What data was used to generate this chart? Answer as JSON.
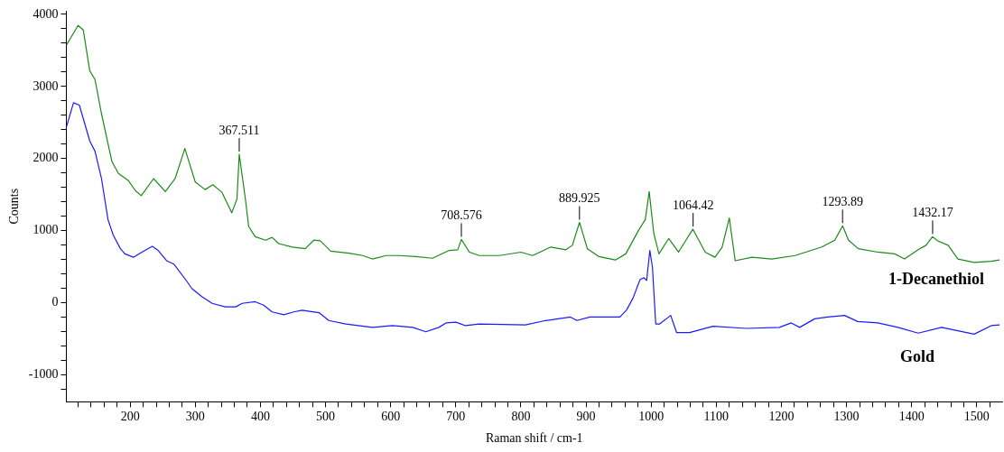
{
  "chart_data": {
    "type": "line",
    "xlabel": "Raman shift / cm-1",
    "ylabel": "Counts",
    "xlim": [
      102,
      1539
    ],
    "ylim": [
      -1375,
      4050
    ],
    "xticks": [
      {
        "value": 120,
        "label": null
      },
      {
        "value": 140,
        "label": null
      },
      {
        "value": 160,
        "label": null
      },
      {
        "value": 180,
        "label": null
      },
      200,
      {
        "value": 220,
        "label": null
      },
      {
        "value": 240,
        "label": null
      },
      {
        "value": 260,
        "label": null
      },
      {
        "value": 280,
        "label": null
      },
      300,
      {
        "value": 320,
        "label": null
      },
      {
        "value": 340,
        "label": null
      },
      {
        "value": 360,
        "label": null
      },
      {
        "value": 380,
        "label": null
      },
      400,
      {
        "value": 420,
        "label": null
      },
      {
        "value": 440,
        "label": null
      },
      {
        "value": 460,
        "label": null
      },
      {
        "value": 480,
        "label": null
      },
      500,
      {
        "value": 520,
        "label": null
      },
      {
        "value": 540,
        "label": null
      },
      {
        "value": 560,
        "label": null
      },
      {
        "value": 580,
        "label": null
      },
      600,
      {
        "value": 620,
        "label": null
      },
      {
        "value": 640,
        "label": null
      },
      {
        "value": 660,
        "label": null
      },
      {
        "value": 680,
        "label": null
      },
      700,
      {
        "value": 720,
        "label": null
      },
      {
        "value": 740,
        "label": null
      },
      {
        "value": 760,
        "label": null
      },
      {
        "value": 780,
        "label": null
      },
      800,
      {
        "value": 820,
        "label": null
      },
      {
        "value": 840,
        "label": null
      },
      {
        "value": 860,
        "label": null
      },
      {
        "value": 880,
        "label": null
      },
      900,
      {
        "value": 920,
        "label": null
      },
      {
        "value": 940,
        "label": null
      },
      {
        "value": 960,
        "label": null
      },
      {
        "value": 980,
        "label": null
      },
      1000,
      {
        "value": 1020,
        "label": null
      },
      {
        "value": 1040,
        "label": null
      },
      {
        "value": 1060,
        "label": null
      },
      {
        "value": 1080,
        "label": null
      },
      1100,
      {
        "value": 1120,
        "label": null
      },
      {
        "value": 1140,
        "label": null
      },
      {
        "value": 1160,
        "label": null
      },
      {
        "value": 1180,
        "label": null
      },
      1200,
      {
        "value": 1220,
        "label": null
      },
      {
        "value": 1240,
        "label": null
      },
      {
        "value": 1260,
        "label": null
      },
      {
        "value": 1280,
        "label": null
      },
      1300,
      {
        "value": 1320,
        "label": null
      },
      {
        "value": 1340,
        "label": null
      },
      {
        "value": 1360,
        "label": null
      },
      {
        "value": 1380,
        "label": null
      },
      1400,
      {
        "value": 1420,
        "label": null
      },
      {
        "value": 1440,
        "label": null
      },
      {
        "value": 1460,
        "label": null
      },
      {
        "value": 1480,
        "label": null
      },
      1500,
      {
        "value": 1520,
        "label": null
      }
    ],
    "yticks": [
      {
        "value": -1200,
        "label": null
      },
      -1000,
      {
        "value": -800,
        "label": null
      },
      {
        "value": -600,
        "label": null
      },
      {
        "value": -400,
        "label": null
      },
      {
        "value": -200,
        "label": null
      },
      0,
      {
        "value": 200,
        "label": null
      },
      {
        "value": 400,
        "label": null
      },
      {
        "value": 600,
        "label": null
      },
      {
        "value": 800,
        "label": null
      },
      1000,
      {
        "value": 1200,
        "label": null
      },
      {
        "value": 1400,
        "label": null
      },
      {
        "value": 1600,
        "label": null
      },
      {
        "value": 1800,
        "label": null
      },
      2000,
      {
        "value": 2200,
        "label": null
      },
      {
        "value": 2400,
        "label": null
      },
      {
        "value": 2600,
        "label": null
      },
      {
        "value": 2800,
        "label": null
      },
      3000,
      {
        "value": 3200,
        "label": null
      },
      {
        "value": 3400,
        "label": null
      },
      {
        "value": 3600,
        "label": null
      },
      {
        "value": 3800,
        "label": null
      },
      4000
    ],
    "marker": "none",
    "line_style": "solid",
    "series": [
      {
        "name": "1-Decanethiol",
        "color": "#1a8a1a",
        "x": [
          102,
          120,
          128,
          138,
          146,
          156,
          172,
          182,
          197,
          208,
          217,
          236,
          254,
          269,
          284,
          300,
          315,
          327,
          341,
          356,
          364,
          367.5,
          377,
          382,
          392,
          408,
          418,
          428,
          449,
          469,
          482,
          492,
          508,
          536,
          557,
          572,
          593,
          613,
          639,
          664,
          690,
          703,
          708.6,
          721,
          736,
          767,
          800,
          818,
          846,
          869,
          879,
          890,
          902,
          920,
          945,
          961,
          981,
          991,
          997,
          1004,
          1012,
          1027,
          1042,
          1064,
          1083,
          1098,
          1109,
          1120,
          1129,
          1155,
          1185,
          1221,
          1262,
          1282,
          1294,
          1303,
          1318,
          1348,
          1374,
          1389,
          1410,
          1422,
          1432,
          1440,
          1456,
          1471,
          1496,
          1522,
          1535
        ],
        "values": [
          3572,
          3847,
          3785,
          3216,
          3098,
          2623,
          1959,
          1793,
          1698,
          1556,
          1485,
          1722,
          1542,
          1722,
          2139,
          1675,
          1570,
          1637,
          1532,
          1248,
          1437,
          2060,
          1437,
          1058,
          916,
          868,
          906,
          821,
          773,
          750,
          868,
          859,
          716,
          688,
          655,
          607,
          655,
          655,
          640,
          617,
          726,
          735,
          878,
          702,
          655,
          655,
          702,
          655,
          773,
          735,
          797,
          1115,
          750,
          640,
          593,
          678,
          1010,
          1153,
          1542,
          963,
          678,
          892,
          702,
          1020,
          702,
          631,
          773,
          1176,
          583,
          631,
          607,
          655,
          773,
          868,
          1067,
          868,
          750,
          702,
          678,
          607,
          735,
          797,
          916,
          859,
          797,
          607,
          560,
          574,
          593
        ]
      },
      {
        "name": "Gold",
        "color": "#1a1aff",
        "x": [
          102,
          113,
          122,
          138,
          146,
          156,
          166,
          174,
          185,
          192,
          205,
          218,
          234,
          243,
          256,
          267,
          285,
          295,
          310,
          326,
          346,
          362,
          372,
          392,
          405,
          418,
          436,
          451,
          464,
          490,
          505,
          531,
          572,
          603,
          634,
          654,
          674,
          685,
          700,
          715,
          736,
          807,
          838,
          876,
          886,
          906,
          952,
          962,
          972,
          983,
          989,
          993,
          998,
          1002,
          1007,
          1013,
          1030,
          1039,
          1059,
          1095,
          1146,
          1197,
          1215,
          1228,
          1251,
          1271,
          1297,
          1317,
          1348,
          1379,
          1410,
          1446,
          1471,
          1496,
          1522,
          1535
        ],
        "values": [
          2434,
          2775,
          2742,
          2244,
          2102,
          1722,
          1153,
          939,
          750,
          678,
          631,
          702,
          783,
          726,
          583,
          536,
          323,
          195,
          85,
          -9,
          -57,
          -57,
          -9,
          14,
          -33,
          -128,
          -166,
          -128,
          -104,
          -138,
          -247,
          -294,
          -342,
          -318,
          -342,
          -403,
          -342,
          -280,
          -270,
          -318,
          -294,
          -308,
          -247,
          -199,
          -247,
          -199,
          -199,
          -104,
          62,
          323,
          346,
          308,
          726,
          489,
          -294,
          -294,
          -176,
          -413,
          -413,
          -327,
          -356,
          -342,
          -280,
          -342,
          -223,
          -199,
          -176,
          -261,
          -280,
          -342,
          -422,
          -342,
          -389,
          -436,
          -318,
          -308
        ]
      }
    ],
    "annotations": [
      {
        "text": "367.511",
        "x": 367.511,
        "y": 2060
      },
      {
        "text": "708.576",
        "x": 708.576,
        "y": 878
      },
      {
        "text": "889.925",
        "x": 889.925,
        "y": 1115
      },
      {
        "text": "1064.42",
        "x": 1064.42,
        "y": 1020
      },
      {
        "text": "1293.89",
        "x": 1293.89,
        "y": 1067
      },
      {
        "text": "1432.17",
        "x": 1432.17,
        "y": 916
      }
    ]
  }
}
